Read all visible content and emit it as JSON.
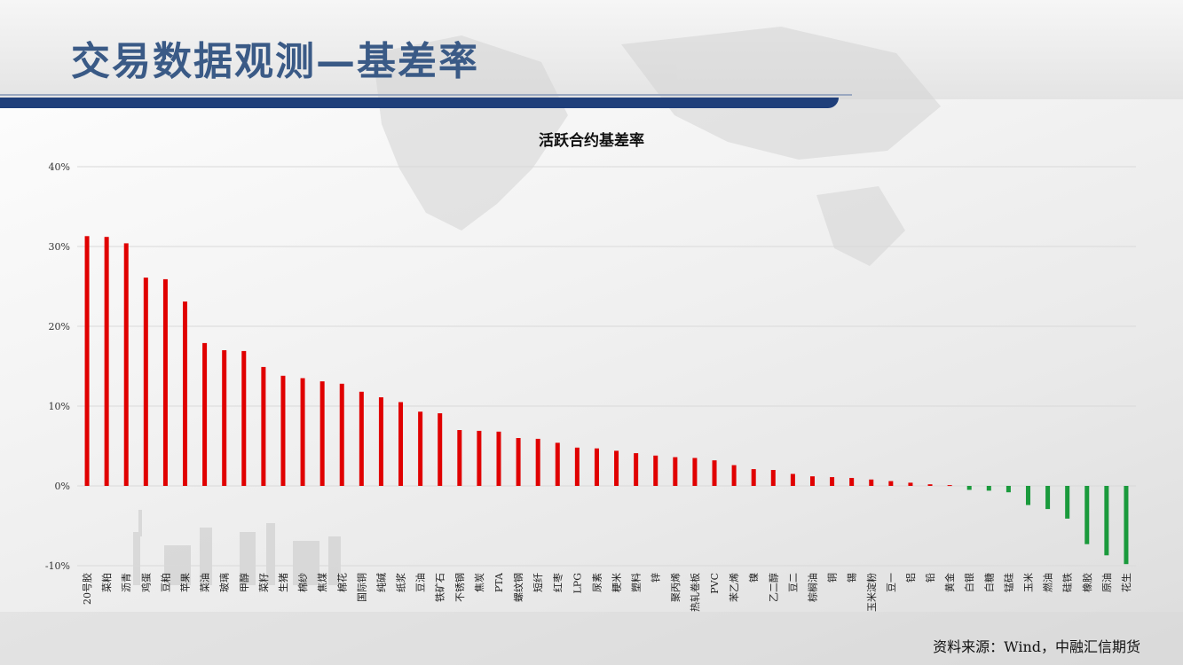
{
  "page": {
    "title": "交易数据观测—基差率",
    "source": "资料来源：Wind，中融汇信期货"
  },
  "colors": {
    "positive": "#e00000",
    "negative": "#1a9a3c",
    "title": "#3a5a86",
    "rule": "#1f3f7a"
  },
  "chart_data": {
    "type": "bar",
    "title": "活跃合约基差率",
    "xlabel": "",
    "ylabel": "",
    "ylim": [
      -10,
      40
    ],
    "yticks": [
      "40%",
      "30%",
      "20%",
      "10%",
      "0%",
      "-10%"
    ],
    "ytick_values": [
      40,
      30,
      20,
      10,
      0,
      -10
    ],
    "grid": true,
    "categories": [
      "20号胶",
      "菜粕",
      "沥青",
      "鸡蛋",
      "豆粕",
      "苹果",
      "菜油",
      "玻璃",
      "甲醇",
      "菜籽",
      "生猪",
      "棉纱",
      "焦煤",
      "棉花",
      "国际铜",
      "纯碱",
      "纸浆",
      "豆油",
      "铁矿石",
      "不锈钢",
      "焦炭",
      "PTA",
      "螺纹钢",
      "短纤",
      "红枣",
      "LPG",
      "尿素",
      "粳米",
      "塑料",
      "锌",
      "聚丙烯",
      "热轧卷板",
      "PVC",
      "苯乙烯",
      "镍",
      "乙二醇",
      "豆二",
      "棕榈油",
      "铜",
      "锡",
      "玉米淀粉",
      "豆一",
      "铝",
      "铅",
      "黄金",
      "白银",
      "白糖",
      "锰硅",
      "玉米",
      "燃油",
      "硅铁",
      "橡胶",
      "原油",
      "花生"
    ],
    "values": [
      31.3,
      31.2,
      30.4,
      26.1,
      25.9,
      23.1,
      17.9,
      17.0,
      16.9,
      14.9,
      13.8,
      13.5,
      13.1,
      12.8,
      11.8,
      11.1,
      10.5,
      9.3,
      9.1,
      7.0,
      6.9,
      6.8,
      6.0,
      5.9,
      5.4,
      4.8,
      4.7,
      4.4,
      4.1,
      3.8,
      3.6,
      3.5,
      3.2,
      2.6,
      2.1,
      2.0,
      1.5,
      1.2,
      1.1,
      1.0,
      0.8,
      0.6,
      0.4,
      0.2,
      0.1,
      -0.5,
      -0.6,
      -0.8,
      -2.4,
      -2.9,
      -4.1,
      -7.3,
      -8.7,
      -9.8
    ]
  }
}
